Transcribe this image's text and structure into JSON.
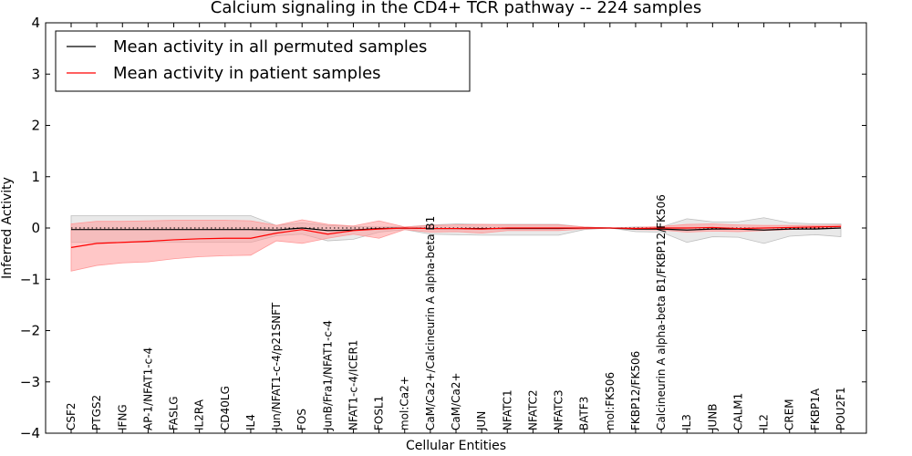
{
  "chart_data": {
    "type": "line",
    "title": "Calcium signaling in the CD4+ TCR pathway -- 224 samples",
    "xlabel": "Cellular Entities",
    "ylabel": "Inferred Activity",
    "ylim": [
      -4,
      4
    ],
    "yticks": [
      4,
      3,
      2,
      1,
      0,
      -1,
      -2,
      -3,
      -4
    ],
    "ytick_labels": [
      "4",
      "3",
      "2",
      "1",
      "0",
      "−1",
      "−2",
      "−3",
      "−4"
    ],
    "grid": false,
    "legend_position": "top-left",
    "categories": [
      "CSF2",
      "PTGS2",
      "IFNG",
      "AP-1/NFAT1-c-4",
      "FASLG",
      "IL2RA",
      "CD40LG",
      "IL4",
      "Jun/NFAT1-c-4/p21SNFT",
      "FOS",
      "JunB/Fra1/NFAT1-c-4",
      "NFAT1-c-4/ICER1",
      "FOSL1",
      "mol:Ca2+",
      "CaM/Ca2+/Calcineurin A alpha-beta B1",
      "CaM/Ca2+",
      "JUN",
      "NFATC1",
      "NFATC2",
      "NFATC3",
      "BATF3",
      "mol:FK506",
      "FKBP12/FK506",
      "Calcineurin A alpha-beta B1/FKBP12/FK506",
      "IL3",
      "JUNB",
      "CALM1",
      "IL2",
      "CREM",
      "FKBP1A",
      "POU2F1"
    ],
    "series": [
      {
        "name": "Mean activity in all permuted samples",
        "color": "#000000",
        "band_color": "#bfbfbf",
        "values": [
          -0.03,
          -0.03,
          -0.03,
          -0.03,
          -0.03,
          -0.03,
          -0.03,
          -0.03,
          -0.04,
          0.0,
          -0.05,
          -0.04,
          -0.01,
          0.0,
          -0.01,
          -0.01,
          -0.01,
          -0.01,
          -0.01,
          -0.01,
          0.0,
          0.0,
          -0.02,
          -0.02,
          -0.04,
          -0.02,
          -0.02,
          -0.04,
          -0.02,
          -0.02,
          0.0
        ],
        "lower": [
          -0.28,
          -0.28,
          -0.28,
          -0.28,
          -0.28,
          -0.28,
          -0.28,
          -0.28,
          -0.15,
          -0.12,
          -0.25,
          -0.22,
          -0.08,
          -0.03,
          -0.12,
          -0.13,
          -0.14,
          -0.14,
          -0.14,
          -0.14,
          -0.03,
          0.0,
          -0.07,
          -0.08,
          -0.28,
          -0.17,
          -0.18,
          -0.3,
          -0.16,
          -0.13,
          -0.17
        ],
        "upper": [
          0.24,
          0.24,
          0.24,
          0.24,
          0.24,
          0.24,
          0.24,
          0.24,
          0.05,
          0.1,
          0.05,
          0.03,
          0.02,
          0.02,
          0.06,
          0.08,
          0.07,
          0.07,
          0.07,
          0.07,
          0.02,
          0.0,
          0.02,
          0.02,
          0.18,
          0.12,
          0.12,
          0.2,
          0.1,
          0.08,
          0.08
        ]
      },
      {
        "name": "Mean activity in patient samples",
        "color": "#ff0000",
        "band_color": "#ff9999",
        "values": [
          -0.38,
          -0.3,
          -0.28,
          -0.26,
          -0.23,
          -0.21,
          -0.2,
          -0.2,
          -0.1,
          -0.03,
          -0.12,
          -0.05,
          -0.02,
          0.0,
          -0.01,
          -0.01,
          -0.02,
          0.0,
          0.0,
          0.0,
          0.0,
          0.0,
          -0.01,
          0.0,
          0.0,
          0.01,
          -0.01,
          0.0,
          0.01,
          0.02,
          0.03
        ],
        "lower": [
          -0.84,
          -0.73,
          -0.68,
          -0.66,
          -0.6,
          -0.56,
          -0.54,
          -0.53,
          -0.25,
          -0.3,
          -0.2,
          -0.12,
          -0.2,
          -0.03,
          -0.08,
          -0.07,
          -0.1,
          -0.05,
          -0.05,
          -0.05,
          -0.02,
          0.0,
          -0.03,
          -0.04,
          -0.08,
          -0.06,
          -0.07,
          -0.05,
          -0.03,
          -0.01,
          0.0
        ],
        "upper": [
          0.08,
          0.13,
          0.13,
          0.14,
          0.15,
          0.15,
          0.15,
          0.14,
          0.05,
          0.16,
          0.07,
          0.04,
          0.14,
          0.02,
          0.05,
          0.06,
          0.07,
          0.06,
          0.06,
          0.06,
          0.02,
          0.0,
          0.01,
          0.03,
          0.07,
          0.08,
          0.06,
          0.05,
          0.05,
          0.05,
          0.06
        ]
      }
    ],
    "reference_line": {
      "y": 0,
      "style": "dotted",
      "color": "#000000"
    }
  }
}
